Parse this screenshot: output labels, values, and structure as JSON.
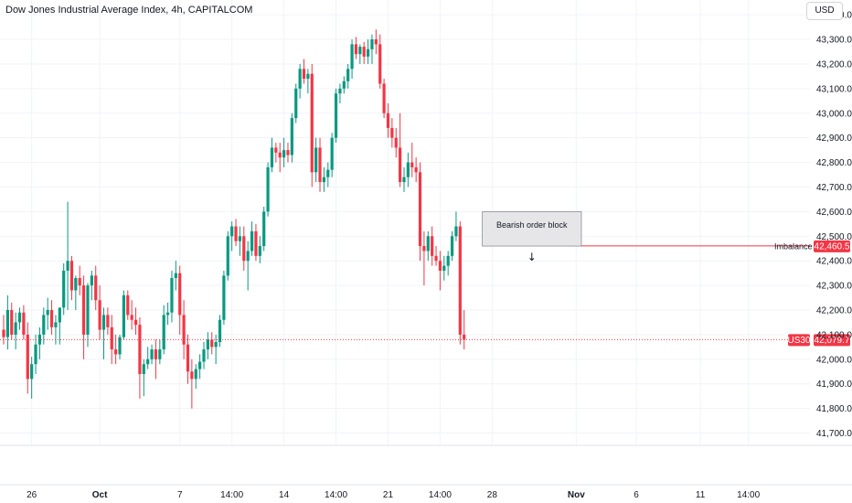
{
  "header": {
    "title": "Dow Jones Industrial Average Index, 4h, CAPITALCOM",
    "currency": "USD"
  },
  "colors": {
    "up": "#089981",
    "down": "#f23645",
    "zone_fill": "#e6e6e9",
    "zone_stroke": "#8a8d94"
  },
  "chart_data": {
    "type": "candlestick",
    "ylim": [
      41650,
      43460
    ],
    "y_ticks": [
      41700,
      41800,
      41900,
      42000,
      42100,
      42200,
      42300,
      42400,
      42500,
      42600,
      42700,
      42800,
      42900,
      43000,
      43100,
      43200,
      43300,
      43400
    ],
    "y_tick_labels": [
      "41,700.0",
      "41,800.0",
      "41,900.0",
      "42,000.0",
      "42,100.0",
      "42,200.0",
      "42,300.0",
      "42,400.0",
      "42,500.0",
      "42,600.0",
      "42,700.0",
      "42,800.0",
      "42,900.0",
      "43,000.0",
      "43,100.0",
      "43,200.0",
      "43,300.0",
      "43,400.0"
    ],
    "x_labels": [
      {
        "label": "26",
        "index": 7,
        "bold": false
      },
      {
        "label": "Oct",
        "index": 24,
        "bold": true
      },
      {
        "label": "7",
        "index": 44,
        "bold": false
      },
      {
        "label": "14:00",
        "index": 57,
        "bold": false
      },
      {
        "label": "14",
        "index": 70,
        "bold": false
      },
      {
        "label": "14:00",
        "index": 83,
        "bold": false
      },
      {
        "label": "21",
        "index": 96,
        "bold": false
      },
      {
        "label": "14:00",
        "index": 109,
        "bold": false
      },
      {
        "label": "28",
        "index": 122,
        "bold": false
      },
      {
        "label": "Nov",
        "index": 143,
        "bold": true
      },
      {
        "label": "6",
        "index": 158,
        "bold": false
      },
      {
        "label": "11",
        "index": 174,
        "bold": false
      },
      {
        "label": "14:00",
        "index": 186,
        "bold": false
      }
    ],
    "candles": [
      [
        42120,
        42180,
        42060,
        42090
      ],
      [
        42090,
        42260,
        42040,
        42200
      ],
      [
        42200,
        42230,
        42080,
        42100
      ],
      [
        42100,
        42190,
        42040,
        42150
      ],
      [
        42150,
        42210,
        42120,
        42190
      ],
      [
        42190,
        42220,
        42080,
        42100
      ],
      [
        42100,
        42150,
        41860,
        41920
      ],
      [
        41920,
        42010,
        41840,
        41980
      ],
      [
        41980,
        42100,
        41940,
        42060
      ],
      [
        42060,
        42130,
        42000,
        42100
      ],
      [
        42100,
        42210,
        42060,
        42180
      ],
      [
        42180,
        42250,
        42120,
        42200
      ],
      [
        42200,
        42240,
        42100,
        42130
      ],
      [
        42130,
        42180,
        42060,
        42150
      ],
      [
        42150,
        42200,
        42060,
        42210
      ],
      [
        42210,
        42390,
        42180,
        42360
      ],
      [
        42360,
        42640,
        42200,
        42400
      ],
      [
        42400,
        42420,
        42240,
        42280
      ],
      [
        42280,
        42340,
        42200,
        42330
      ],
      [
        42330,
        42380,
        42260,
        42300
      ],
      [
        42300,
        42340,
        42000,
        42100
      ],
      [
        42100,
        42310,
        42050,
        42300
      ],
      [
        42300,
        42360,
        42240,
        42340
      ],
      [
        42340,
        42380,
        42200,
        42240
      ],
      [
        42240,
        42300,
        42080,
        42120
      ],
      [
        42120,
        42210,
        42000,
        42180
      ],
      [
        42180,
        42210,
        42100,
        42130
      ],
      [
        42130,
        42180,
        41980,
        42040
      ],
      [
        42040,
        42100,
        41980,
        42020
      ],
      [
        42020,
        42100,
        42000,
        42090
      ],
      [
        42090,
        42280,
        42080,
        42260
      ],
      [
        42260,
        42280,
        42160,
        42180
      ],
      [
        42180,
        42240,
        42120,
        42160
      ],
      [
        42160,
        42210,
        42100,
        42140
      ],
      [
        42140,
        42170,
        41840,
        41940
      ],
      [
        41940,
        42000,
        41850,
        41980
      ],
      [
        41980,
        42050,
        41960,
        42000
      ],
      [
        42000,
        42060,
        41980,
        42040
      ],
      [
        42040,
        42080,
        41920,
        42000
      ],
      [
        42000,
        42080,
        41980,
        42040
      ],
      [
        42040,
        42220,
        42020,
        42180
      ],
      [
        42180,
        42230,
        42140,
        42190
      ],
      [
        42190,
        42360,
        42150,
        42330
      ],
      [
        42330,
        42400,
        42280,
        42350
      ],
      [
        42350,
        42380,
        42100,
        42180
      ],
      [
        42180,
        42240,
        42000,
        42060
      ],
      [
        42060,
        42100,
        41900,
        41950
      ],
      [
        41950,
        42000,
        41800,
        41920
      ],
      [
        41920,
        41980,
        41880,
        41960
      ],
      [
        41960,
        42020,
        41920,
        41990
      ],
      [
        41990,
        42070,
        41960,
        42040
      ],
      [
        42040,
        42110,
        42000,
        42080
      ],
      [
        42080,
        42110,
        42020,
        42050
      ],
      [
        42050,
        42100,
        41980,
        42070
      ],
      [
        42070,
        42180,
        42050,
        42160
      ],
      [
        42160,
        42360,
        42140,
        42340
      ],
      [
        42340,
        42520,
        42320,
        42500
      ],
      [
        42500,
        42560,
        42440,
        42540
      ],
      [
        42540,
        42570,
        42460,
        42480
      ],
      [
        42480,
        42540,
        42420,
        42500
      ],
      [
        42500,
        42540,
        42360,
        42400
      ],
      [
        42400,
        42480,
        42280,
        42440
      ],
      [
        42440,
        42560,
        42420,
        42520
      ],
      [
        42520,
        42550,
        42400,
        42420
      ],
      [
        42420,
        42500,
        42390,
        42460
      ],
      [
        42460,
        42620,
        42440,
        42600
      ],
      [
        42600,
        42800,
        42580,
        42780
      ],
      [
        42780,
        42900,
        42760,
        42860
      ],
      [
        42860,
        42880,
        42800,
        42840
      ],
      [
        42840,
        42880,
        42760,
        42820
      ],
      [
        42820,
        42900,
        42780,
        42850
      ],
      [
        42850,
        42880,
        42800,
        42830
      ],
      [
        42830,
        43000,
        42800,
        42980
      ],
      [
        42980,
        43120,
        42960,
        43100
      ],
      [
        43100,
        43200,
        43060,
        43180
      ],
      [
        43180,
        43220,
        43120,
        43140
      ],
      [
        43140,
        43180,
        43080,
        43160
      ],
      [
        43160,
        43200,
        42700,
        42760
      ],
      [
        42760,
        42900,
        42720,
        42860
      ],
      [
        42860,
        42900,
        42680,
        42720
      ],
      [
        42720,
        42780,
        42680,
        42740
      ],
      [
        42740,
        42800,
        42700,
        42770
      ],
      [
        42770,
        42920,
        42740,
        42900
      ],
      [
        42900,
        43100,
        42880,
        43080
      ],
      [
        43080,
        43120,
        43040,
        43100
      ],
      [
        43100,
        43150,
        43080,
        43130
      ],
      [
        43130,
        43200,
        43100,
        43180
      ],
      [
        43180,
        43300,
        43140,
        43280
      ],
      [
        43280,
        43310,
        43220,
        43240
      ],
      [
        43240,
        43280,
        43200,
        43270
      ],
      [
        43270,
        43290,
        43200,
        43230
      ],
      [
        43230,
        43300,
        43200,
        43260
      ],
      [
        43260,
        43320,
        43200,
        43300
      ],
      [
        43300,
        43340,
        43240,
        43280
      ],
      [
        43280,
        43320,
        43100,
        43120
      ],
      [
        43120,
        43140,
        42980,
        43000
      ],
      [
        43000,
        43040,
        42900,
        42940
      ],
      [
        42940,
        42980,
        42860,
        42900
      ],
      [
        42900,
        42940,
        42820,
        42860
      ],
      [
        42860,
        43000,
        42700,
        42720
      ],
      [
        42720,
        42780,
        42680,
        42740
      ],
      [
        42740,
        42840,
        42700,
        42800
      ],
      [
        42800,
        42880,
        42740,
        42780
      ],
      [
        42780,
        42820,
        42720,
        42760
      ],
      [
        42760,
        42800,
        42400,
        42460
      ],
      [
        42460,
        42520,
        42300,
        42440
      ],
      [
        42440,
        42520,
        42400,
        42500
      ],
      [
        42500,
        42540,
        42380,
        42420
      ],
      [
        42420,
        42460,
        42380,
        42400
      ],
      [
        42400,
        42440,
        42280,
        42360
      ],
      [
        42360,
        42420,
        42320,
        42380
      ],
      [
        42380,
        42440,
        42340,
        42420
      ],
      [
        42420,
        42520,
        42400,
        42500
      ],
      [
        42500,
        42600,
        42480,
        42540
      ],
      [
        42540,
        42560,
        42060,
        42100
      ],
      [
        42100,
        42200,
        42040,
        42080
      ]
    ]
  },
  "annotations": {
    "zone_label": "Bearish order block",
    "zone_top": 42600,
    "zone_bottom": 42460,
    "zone_start_index": 120,
    "zone_end_index": 142,
    "imbalance_label": "Imbalance",
    "imbalance_level": 42460.5,
    "imbalance_price_tag": "42,460.5",
    "last_label": "US30",
    "last_price": 42079.7,
    "last_price_tag": "42,079.7",
    "arrow_glyph": "↓"
  }
}
